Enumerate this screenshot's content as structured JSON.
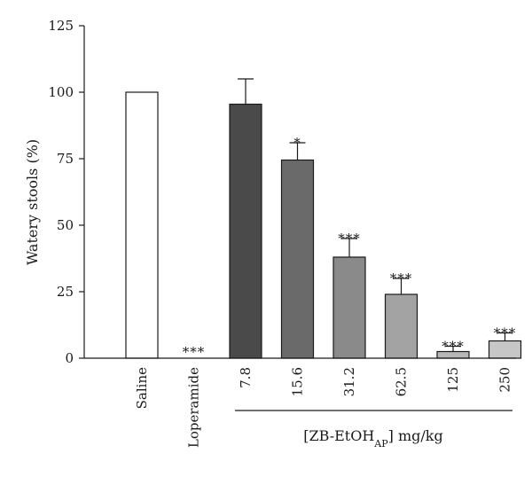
{
  "chart_data": {
    "type": "bar",
    "ylabel": "Watery stools (%)",
    "ylim": [
      0,
      125
    ],
    "yticks": [
      0,
      25,
      50,
      75,
      100,
      125
    ],
    "group_label": "[ZB-EtOH",
    "group_label_subscript": "AP",
    "group_label_suffix": "] mg/kg",
    "bars": [
      {
        "category": "Saline",
        "value": 100,
        "error": 0,
        "significance": "",
        "color": "#ffffff"
      },
      {
        "category": "Loperamide",
        "value": 0,
        "error": 0,
        "significance": "***",
        "color": "#ffffff"
      },
      {
        "category": "7.8",
        "value": 95.5,
        "error": 9.5,
        "significance": "",
        "color": "#4a4a4a"
      },
      {
        "category": "15.6",
        "value": 74.5,
        "error": 6.5,
        "significance": "*",
        "color": "#6a6a6a"
      },
      {
        "category": "31.2",
        "value": 38,
        "error": 7,
        "significance": "***",
        "color": "#8a8a8a"
      },
      {
        "category": "62.5",
        "value": 24,
        "error": 6,
        "significance": "***",
        "color": "#a3a3a3"
      },
      {
        "category": "125",
        "value": 2.5,
        "error": 2,
        "significance": "***",
        "color": "#b6b6b6"
      },
      {
        "category": "250",
        "value": 6.5,
        "error": 3,
        "significance": "***",
        "color": "#c7c7c7"
      }
    ]
  }
}
